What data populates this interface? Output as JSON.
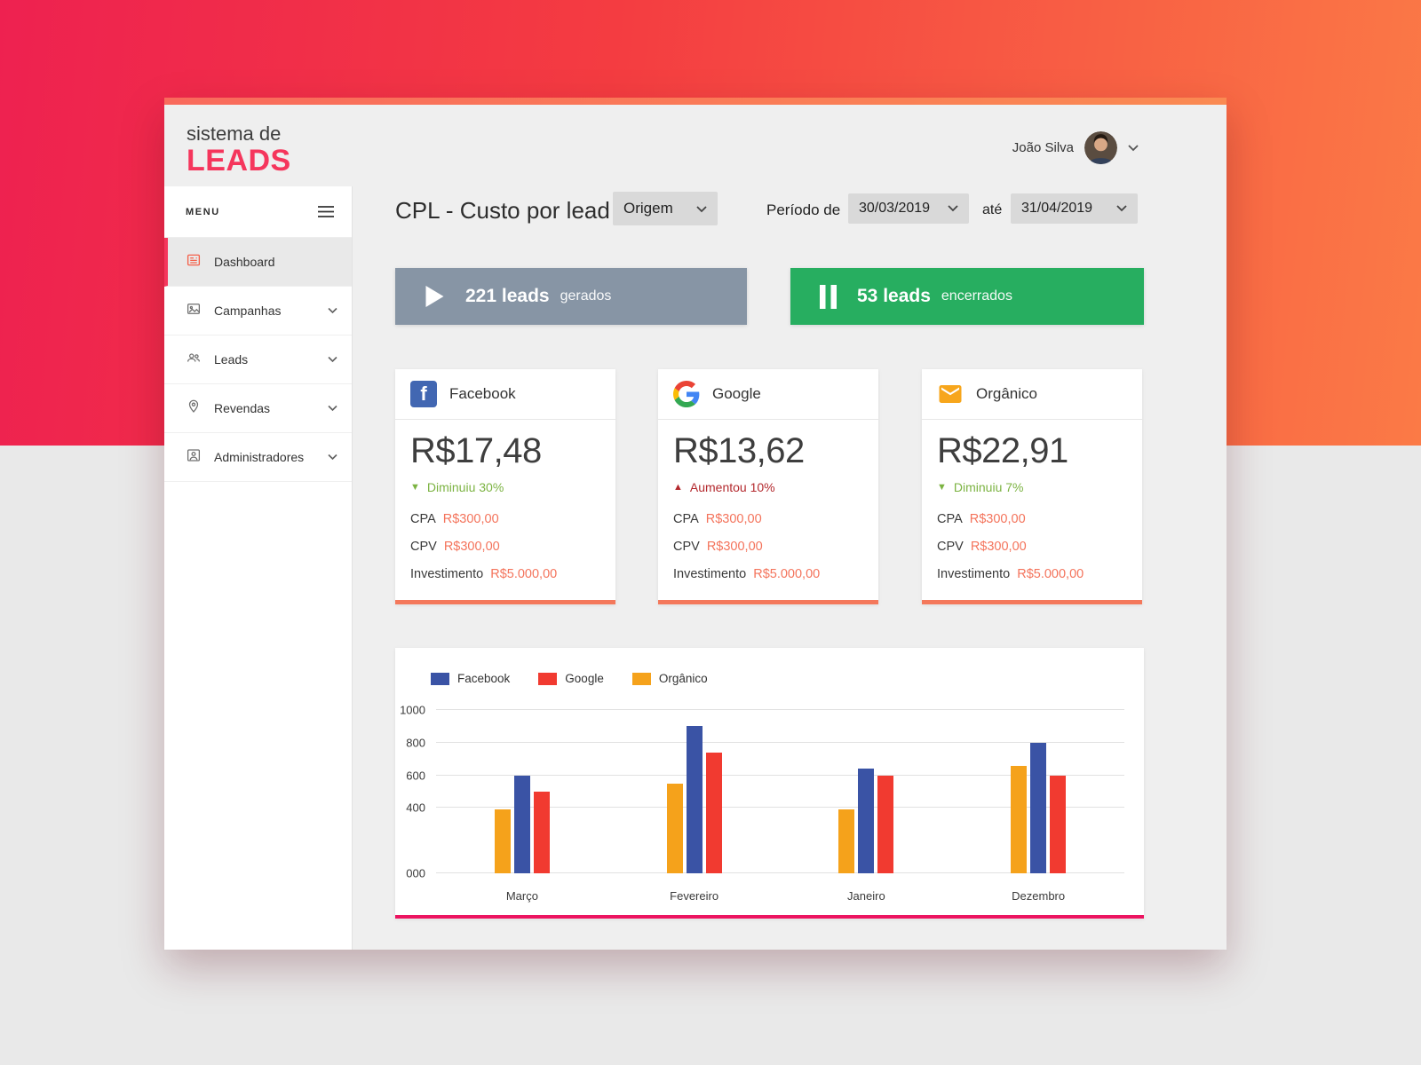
{
  "app": {
    "logo_line1": "sistema de",
    "logo_line2": "LEADS",
    "user_name": "João Silva",
    "accent_color": "#f5365c"
  },
  "sidebar": {
    "menu_label": "MENU",
    "items": [
      {
        "label": "Dashboard",
        "icon": "dashboard-icon",
        "active": true
      },
      {
        "label": "Campanhas",
        "icon": "campaigns-icon",
        "active": false
      },
      {
        "label": "Leads",
        "icon": "leads-icon",
        "active": false
      },
      {
        "label": "Revendas",
        "icon": "map-pin-icon",
        "active": false
      },
      {
        "label": "Administradores",
        "icon": "admin-badge-icon",
        "active": false
      }
    ]
  },
  "toolbar": {
    "title": "CPL - Custo por lead",
    "origin_select_value": "Origem",
    "period_label": "Período de",
    "date_from_value": "30/03/2019",
    "until_label": "até",
    "date_to_value": "31/04/2019"
  },
  "banners": {
    "generated": {
      "count": "221 leads",
      "label": "gerados",
      "color": "#8795a5",
      "icon": "play-icon"
    },
    "closed": {
      "count": "53 leads",
      "label": "encerrados",
      "color": "#27ae60",
      "icon": "pause-icon"
    }
  },
  "cards": [
    {
      "title": "Facebook",
      "icon": "facebook-icon",
      "value": "R$17,48",
      "trend": {
        "glyph": "▼",
        "text": "Diminuiu 30%",
        "color": "#7cb342",
        "direction": "down"
      },
      "stats": [
        {
          "label": "CPA",
          "value": "R$300,00"
        },
        {
          "label": "CPV",
          "value": "R$300,00"
        },
        {
          "label": "Investimento",
          "value": "R$5.000,00"
        }
      ]
    },
    {
      "title": "Google",
      "icon": "google-icon",
      "value": "R$13,62",
      "trend": {
        "glyph": "▲",
        "text": "Aumentou 10%",
        "color": "#b3282d",
        "direction": "up"
      },
      "stats": [
        {
          "label": "CPA",
          "value": "R$300,00"
        },
        {
          "label": "CPV",
          "value": "R$300,00"
        },
        {
          "label": "Investimento",
          "value": "R$5.000,00"
        }
      ]
    },
    {
      "title": "Orgânico",
      "icon": "email-icon",
      "value": "R$22,91",
      "trend": {
        "glyph": "▼",
        "text": "Diminuiu 7%",
        "color": "#7cb342",
        "direction": "down"
      },
      "stats": [
        {
          "label": "CPA",
          "value": "R$300,00"
        },
        {
          "label": "CPV",
          "value": "R$300,00"
        },
        {
          "label": "Investimento",
          "value": "R$5.000,00"
        }
      ]
    }
  ],
  "chart_data": {
    "type": "bar",
    "title": "",
    "categories": [
      "Março",
      "Fevereiro",
      "Janeiro",
      "Dezembro"
    ],
    "series": [
      {
        "name": "Facebook",
        "color": "#3a53a5",
        "values": [
          600,
          900,
          640,
          800
        ]
      },
      {
        "name": "Google",
        "color": "#f13a30",
        "values": [
          500,
          740,
          600,
          600
        ]
      },
      {
        "name": "Orgânico",
        "color": "#f5a21b",
        "values": [
          390,
          550,
          390,
          660
        ]
      }
    ],
    "bar_draw_order": [
      2,
      0,
      1
    ],
    "ylim": [
      0,
      1000
    ],
    "y_ticks": [
      {
        "label": "1000",
        "value": 1000
      },
      {
        "label": "800",
        "value": 800
      },
      {
        "label": "600",
        "value": 600
      },
      {
        "label": "400",
        "value": 400
      },
      {
        "label": "000",
        "value": 0
      }
    ],
    "grid": true,
    "legend_position": "top-left"
  }
}
